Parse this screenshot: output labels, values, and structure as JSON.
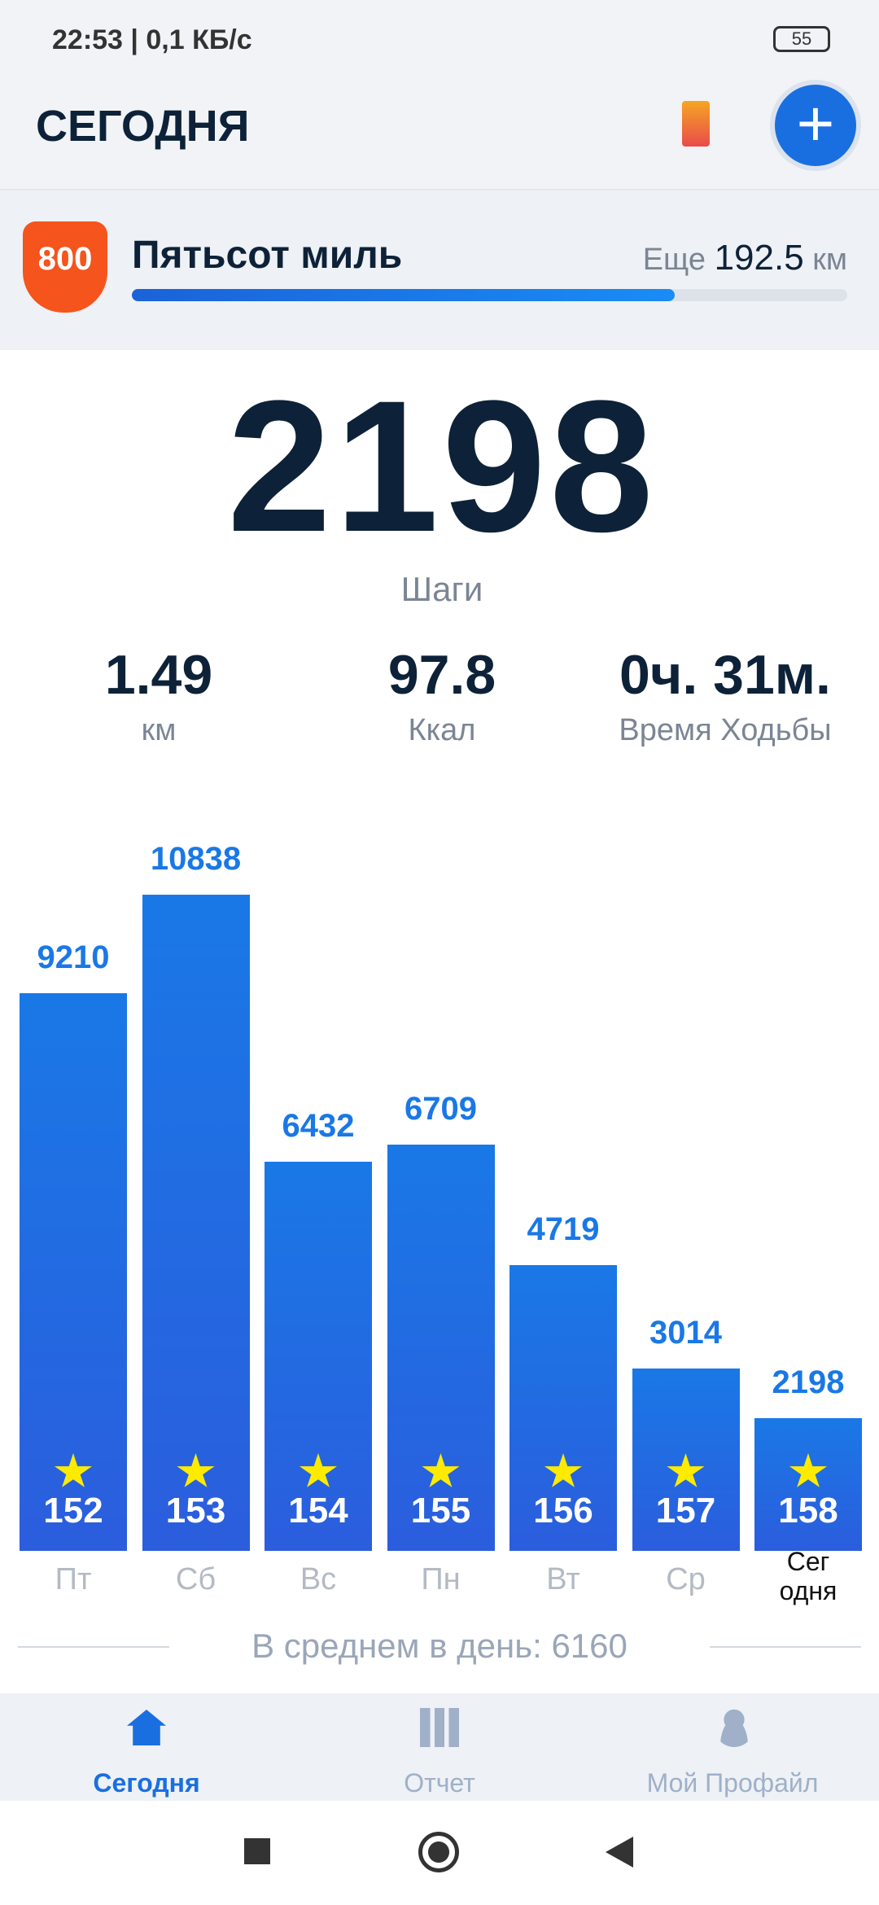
{
  "status_bar": {
    "time": "22:53 | 0,1 КБ/с",
    "battery": "55"
  },
  "header": {
    "title": "СЕГОДНЯ"
  },
  "challenge": {
    "badge": "800",
    "title": "Пятьсот миль",
    "remaining_prefix": "Еще",
    "remaining": 192.5,
    "remaining_unit": "км"
  },
  "summary": {
    "steps": 2198,
    "steps_label": "Шаги",
    "stats": [
      {
        "value": 1.49,
        "label": "км"
      },
      {
        "value": 97.8,
        "label": "Ккал"
      },
      {
        "value": "0ч. 31м.",
        "label": "Время Ходьбы"
      }
    ]
  },
  "chart_data": {
    "type": "bar",
    "color": "#1a78e6",
    "categories": [
      "Пт",
      "Сб",
      "Вс",
      "Пн",
      "Вт",
      "Ср",
      "Сег\nодня"
    ],
    "values": [
      9210,
      10838,
      6432,
      6709,
      4719,
      3014,
      2198
    ],
    "day_numbers": [
      152,
      153,
      154,
      155,
      156,
      157,
      158
    ],
    "average_text": "В среднем в день: 6160"
  },
  "nav": {
    "items": [
      "Сегодня",
      "Отчет",
      "Мой Профайл"
    ]
  }
}
